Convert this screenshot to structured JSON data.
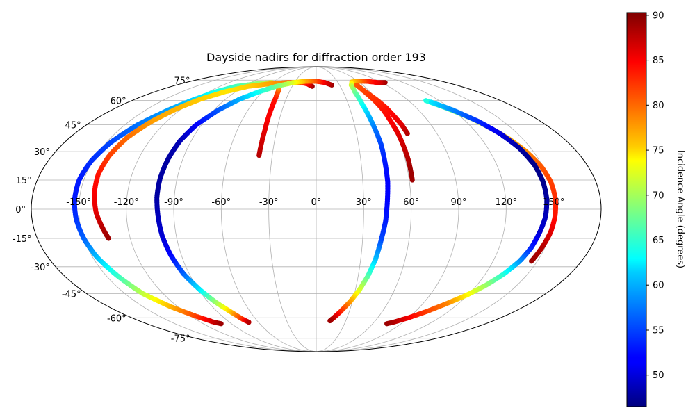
{
  "chart_data": {
    "type": "scatter",
    "projection": "mollweide",
    "title": "Dayside nadirs for diffraction order 193",
    "lon_ticks": [
      -150,
      -120,
      -90,
      -60,
      -30,
      0,
      30,
      60,
      90,
      120,
      150
    ],
    "lon_tick_labels": [
      "-150°",
      "-120°",
      "-90°",
      "-60°",
      "-30°",
      "0°",
      "30°",
      "60°",
      "90°",
      "120°",
      "150°"
    ],
    "lat_ticks": [
      -75,
      -60,
      -45,
      -30,
      -15,
      0,
      15,
      30,
      45,
      60,
      75
    ],
    "lat_tick_labels": [
      "-75°",
      "-60°",
      "-45°",
      "-30°",
      "-15°",
      "0°",
      "15°",
      "30°",
      "45°",
      "60°",
      "75°"
    ],
    "grid": true,
    "colormap": "jet",
    "colorbar": {
      "label": "Incidence Angle (degrees)",
      "range": [
        46.5,
        90.3
      ],
      "ticks": [
        50,
        55,
        60,
        65,
        70,
        75,
        80,
        85,
        90
      ],
      "tick_labels": [
        "50",
        "55",
        "60",
        "65",
        "70",
        "75",
        "80",
        "85",
        "90"
      ],
      "placement": "right"
    },
    "series": [
      {
        "points": [
          [
            -39,
            28,
            88
          ],
          [
            -39,
            35,
            87
          ],
          [
            -39,
            42,
            86
          ],
          [
            -39.5,
            49,
            85
          ],
          [
            -40,
            55,
            85
          ],
          [
            -41,
            62,
            84
          ],
          [
            -43,
            67,
            81
          ],
          [
            -47,
            70,
            78
          ],
          [
            -52,
            72,
            75
          ],
          [
            -62,
            73,
            72
          ],
          [
            -80,
            72,
            69
          ],
          [
            -100,
            70,
            66
          ],
          [
            -112,
            66,
            64
          ],
          [
            -122,
            60,
            61
          ],
          [
            -130,
            54,
            59
          ],
          [
            -140,
            45,
            57
          ],
          [
            -147,
            35,
            55
          ],
          [
            -151,
            25,
            54
          ],
          [
            -153,
            15,
            53
          ],
          [
            -153,
            5,
            53
          ],
          [
            -152,
            -5,
            54
          ],
          [
            -150,
            -15,
            56
          ],
          [
            -147,
            -25,
            60
          ],
          [
            -142,
            -35,
            65
          ],
          [
            -136,
            -45,
            71
          ],
          [
            -126,
            -53,
            77
          ],
          [
            -115,
            -59,
            82
          ],
          [
            -106,
            -63,
            87
          ],
          [
            -101,
            -64,
            89
          ]
        ]
      },
      {
        "points": [
          [
            -5,
            70,
            89
          ],
          [
            -12,
            72,
            85
          ],
          [
            -22,
            73,
            82
          ],
          [
            -40,
            73,
            80
          ],
          [
            -62,
            72,
            78
          ],
          [
            -85,
            70,
            76
          ],
          [
            -102,
            66,
            75
          ],
          [
            -115,
            61,
            76
          ],
          [
            -124,
            55,
            77
          ],
          [
            -132,
            47,
            78
          ],
          [
            -138,
            38,
            80
          ],
          [
            -141,
            28,
            82
          ],
          [
            -142,
            18,
            84
          ],
          [
            -141,
            8,
            85
          ],
          [
            -139,
            -2,
            86
          ],
          [
            -136,
            -10,
            88
          ],
          [
            -134,
            -15,
            89
          ]
        ]
      },
      {
        "points": [
          [
            20,
            71,
            89
          ],
          [
            12,
            73,
            86
          ],
          [
            0,
            74,
            82
          ],
          [
            -15,
            74,
            78
          ],
          [
            -32,
            73,
            73
          ],
          [
            -50,
            70,
            68
          ],
          [
            -64,
            66,
            64
          ],
          [
            -76,
            61,
            60
          ],
          [
            -86,
            54,
            56
          ],
          [
            -94,
            45,
            52
          ],
          [
            -98,
            36,
            49
          ],
          [
            -100,
            26,
            48
          ],
          [
            -101,
            16,
            48
          ],
          [
            -101,
            6,
            48
          ],
          [
            -100,
            -4,
            49
          ],
          [
            -99,
            -14,
            50
          ],
          [
            -97,
            -24,
            52
          ],
          [
            -94,
            -34,
            56
          ],
          [
            -89,
            -43,
            62
          ],
          [
            -84,
            -50,
            69
          ],
          [
            -78,
            -56,
            76
          ],
          [
            -73,
            -61,
            83
          ],
          [
            -70,
            -63,
            88
          ]
        ]
      },
      {
        "points": [
          [
            95,
            73,
            89
          ],
          [
            85,
            73,
            86
          ],
          [
            72,
            74,
            83
          ],
          [
            60,
            74,
            79
          ],
          [
            50,
            73.5,
            76
          ],
          [
            45,
            71,
            72
          ],
          [
            43,
            66,
            68
          ],
          [
            43,
            58,
            64
          ],
          [
            44,
            50,
            60
          ],
          [
            45,
            42,
            57
          ],
          [
            46,
            34,
            55
          ],
          [
            46,
            24,
            53
          ],
          [
            46,
            14,
            52
          ],
          [
            45,
            4,
            52
          ],
          [
            44,
            -6,
            53
          ],
          [
            42,
            -16,
            55
          ],
          [
            40,
            -26,
            60
          ],
          [
            37,
            -35,
            66
          ],
          [
            33,
            -43,
            72
          ],
          [
            28,
            -50,
            78
          ],
          [
            22,
            -56,
            83
          ],
          [
            17,
            -60,
            87
          ],
          [
            14,
            -62,
            89
          ]
        ]
      },
      {
        "points": [
          [
            52,
            71,
            81
          ],
          [
            54,
            66,
            82
          ],
          [
            57,
            60,
            83
          ],
          [
            59,
            54,
            84
          ],
          [
            60,
            46,
            85
          ],
          [
            61,
            40,
            86
          ],
          [
            61.5,
            33,
            87
          ],
          [
            62,
            26,
            88
          ],
          [
            62,
            20,
            89
          ],
          [
            62,
            15,
            89
          ]
        ]
      },
      {
        "points": [
          [
            52,
            71,
            81
          ],
          [
            55,
            66,
            82
          ],
          [
            60,
            60,
            83
          ],
          [
            63,
            55,
            84
          ],
          [
            65,
            50,
            85
          ],
          [
            67,
            45,
            86
          ],
          [
            68,
            40,
            88
          ]
        ]
      },
      {
        "points": [
          [
            107,
            60,
            64
          ],
          [
            117,
            55,
            67
          ],
          [
            127,
            49,
            71
          ],
          [
            134,
            43,
            74
          ],
          [
            140,
            37,
            77
          ],
          [
            145,
            30,
            79
          ],
          [
            149,
            22,
            81
          ],
          [
            151,
            14,
            82
          ],
          [
            151.5,
            5,
            83
          ],
          [
            151,
            -4,
            84
          ],
          [
            150,
            -12,
            86
          ],
          [
            148,
            -20,
            88
          ],
          [
            146,
            -27,
            89
          ]
        ]
      },
      {
        "points": [
          [
            110,
            59,
            62
          ],
          [
            120,
            54,
            58
          ],
          [
            130,
            47,
            54
          ],
          [
            137,
            40,
            51
          ],
          [
            142,
            32,
            48
          ],
          [
            145,
            23,
            47
          ],
          [
            146,
            14,
            47
          ],
          [
            146,
            5,
            48
          ],
          [
            145,
            -4,
            49
          ],
          [
            143,
            -12,
            50
          ],
          [
            141,
            -20,
            53
          ],
          [
            138,
            -27,
            58
          ],
          [
            133,
            -34,
            64
          ],
          [
            127,
            -40,
            69
          ],
          [
            119,
            -46,
            74
          ],
          [
            110,
            -51,
            79
          ],
          [
            100,
            -56,
            82
          ],
          [
            90,
            -60,
            85
          ],
          [
            80,
            -63,
            88
          ],
          [
            75,
            -64,
            89
          ]
        ]
      }
    ]
  }
}
